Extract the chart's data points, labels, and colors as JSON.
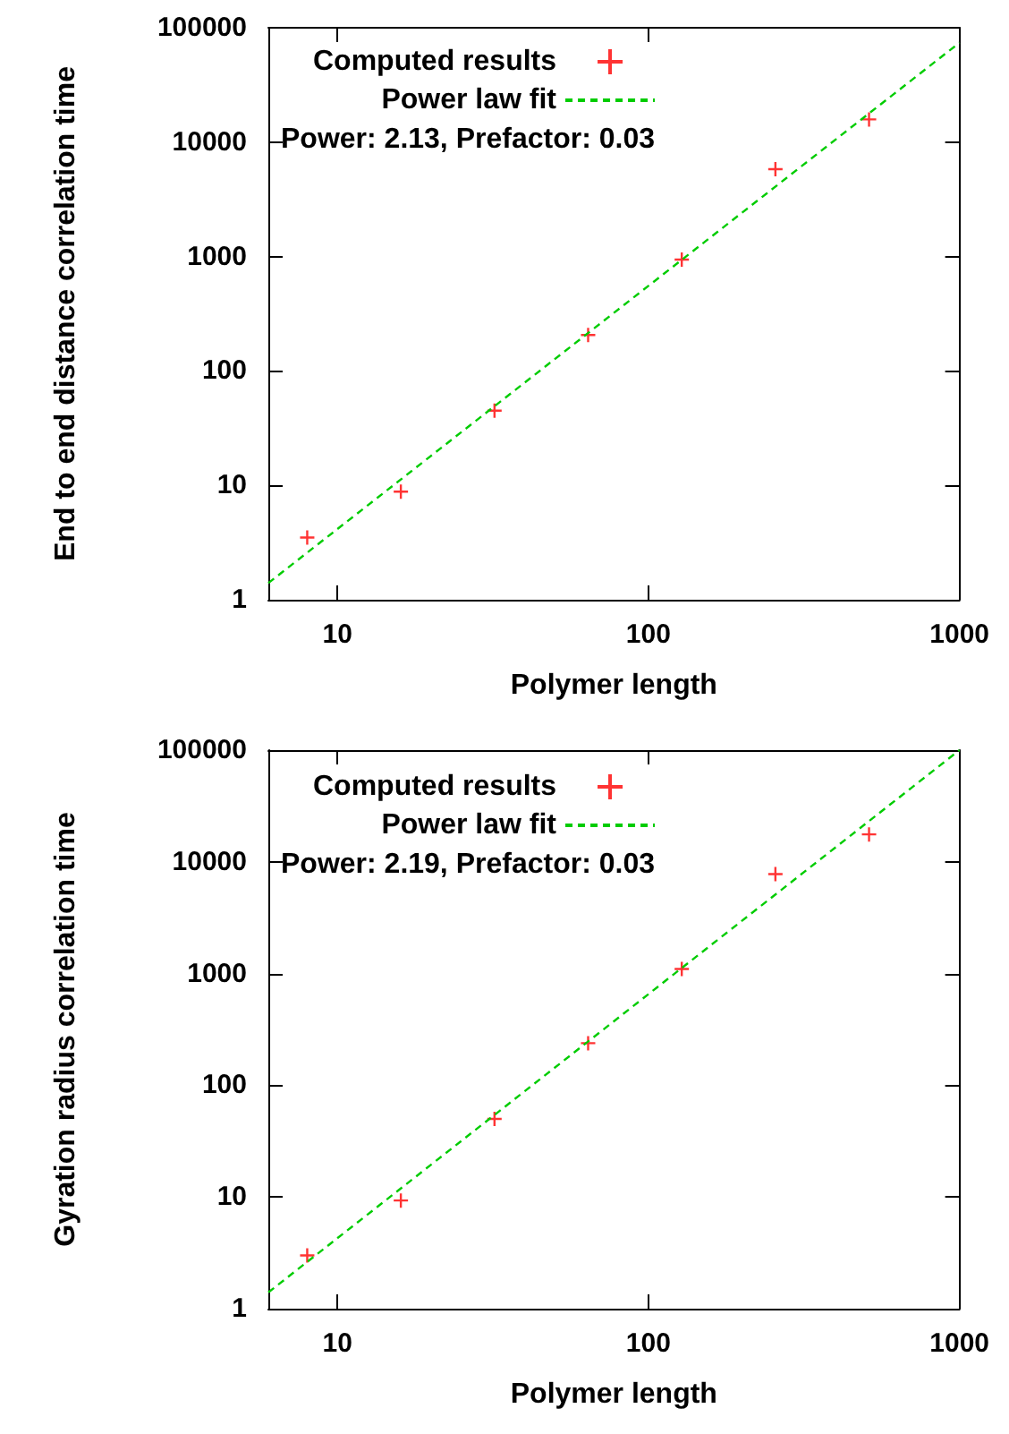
{
  "chart_data": [
    {
      "type": "scatter",
      "xlabel": "Polymer length",
      "ylabel": "End to end distance correlation time",
      "log": "xy",
      "xlim": [
        6,
        1000
      ],
      "xticks": [
        10,
        100,
        1000
      ],
      "ylim": [
        1,
        100000
      ],
      "yticks": [
        1,
        10,
        100,
        1000,
        10000,
        100000
      ],
      "grid": false,
      "legend": "top left",
      "marker": "cross",
      "annotations": [
        "Power: 2.13, Prefactor: 0.03"
      ],
      "series": [
        {
          "name": "Computed results",
          "color": "#ff0000",
          "x": [
            8,
            16,
            32,
            64,
            128,
            256,
            512
          ],
          "values": [
            3.5,
            8.8,
            45,
            206,
            940,
            5800,
            15800
          ]
        },
        {
          "name": "Power law fit",
          "type": "line",
          "color": "#00cc00",
          "line_style": "dashed",
          "marker": "none",
          "x": [
            6,
            1000
          ],
          "values": [
            1.4,
            74000
          ]
        }
      ]
    },
    {
      "type": "scatter",
      "xlabel": "Polymer length",
      "ylabel": "Gyration radius correlation time",
      "log": "xy",
      "xlim": [
        6,
        1000
      ],
      "xticks": [
        10,
        100,
        1000
      ],
      "ylim": [
        1,
        100000
      ],
      "yticks": [
        1,
        10,
        100,
        1000,
        10000,
        100000
      ],
      "grid": false,
      "legend": "top left",
      "marker": "cross",
      "annotations": [
        "Power: 2.19, Prefactor: 0.03"
      ],
      "series": [
        {
          "name": "Computed results",
          "color": "#ff0000",
          "x": [
            8,
            16,
            32,
            64,
            128,
            256,
            512
          ],
          "values": [
            3.0,
            9.3,
            50,
            238,
            1100,
            7760,
            17600
          ]
        },
        {
          "name": "Power law fit",
          "type": "line",
          "color": "#00cc00",
          "line_style": "dashed",
          "marker": "none",
          "x": [
            6,
            1000
          ],
          "values": [
            1.4,
            100000
          ]
        }
      ]
    }
  ]
}
